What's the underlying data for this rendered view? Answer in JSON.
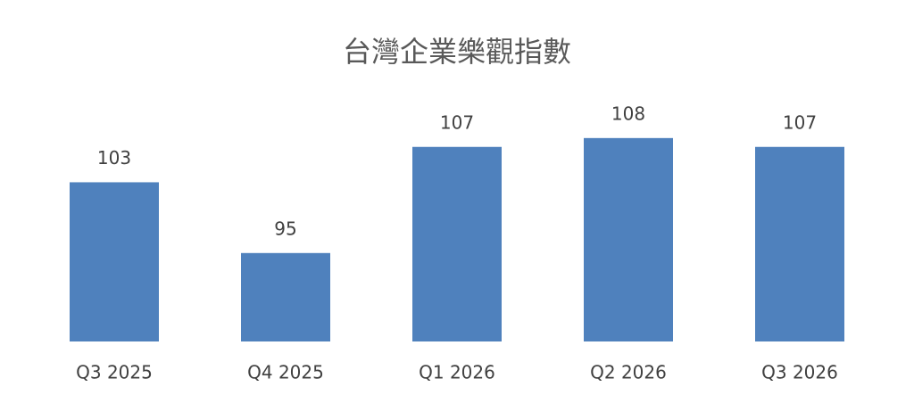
{
  "chart_data": {
    "type": "bar",
    "title": "台灣企業樂觀指數",
    "categories": [
      "Q3 2025",
      "Q4 2025",
      "Q1 2026",
      "Q2 2026",
      "Q3 2026"
    ],
    "values": [
      103,
      95,
      107,
      108,
      107
    ],
    "color": "#4f81bd",
    "ylim": [
      85,
      110
    ]
  }
}
